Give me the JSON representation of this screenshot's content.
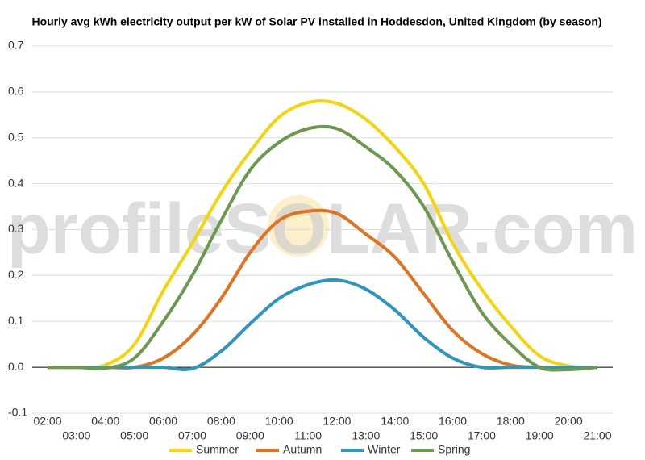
{
  "chart_data": {
    "type": "line",
    "title": "Hourly avg kWh electricity output per kW of Solar PV installed in Hoddesdon, United Kingdom (by season)",
    "watermark": "profileSOLAR.com",
    "categories": [
      "02:00",
      "03:00",
      "04:00",
      "05:00",
      "06:00",
      "07:00",
      "08:00",
      "09:00",
      "10:00",
      "11:00",
      "12:00",
      "13:00",
      "14:00",
      "15:00",
      "16:00",
      "17:00",
      "18:00",
      "19:00",
      "20:00",
      "21:00"
    ],
    "series": [
      {
        "name": "Summer",
        "color": "#f5d50a",
        "values": [
          0,
          0,
          0.005,
          0.05,
          0.167,
          0.27,
          0.38,
          0.47,
          0.545,
          0.577,
          0.575,
          0.54,
          0.48,
          0.4,
          0.27,
          0.17,
          0.09,
          0.025,
          0.003,
          0
        ]
      },
      {
        "name": "Autumn",
        "color": "#e3711e",
        "values": [
          0,
          0,
          0,
          0,
          0.02,
          0.07,
          0.15,
          0.25,
          0.32,
          0.34,
          0.335,
          0.29,
          0.24,
          0.16,
          0.08,
          0.03,
          0.005,
          0,
          0,
          0
        ]
      },
      {
        "name": "Winter",
        "color": "#2b96c0",
        "values": [
          0,
          0,
          0,
          0,
          0,
          -0.003,
          0.035,
          0.095,
          0.15,
          0.18,
          0.19,
          0.17,
          0.125,
          0.065,
          0.02,
          0,
          0,
          0,
          0,
          0
        ]
      },
      {
        "name": "Spring",
        "color": "#6b9a4e",
        "values": [
          0,
          0,
          -0.002,
          0.02,
          0.1,
          0.2,
          0.32,
          0.43,
          0.49,
          0.52,
          0.52,
          0.48,
          0.43,
          0.35,
          0.23,
          0.12,
          0.05,
          0,
          -0.005,
          0
        ]
      }
    ],
    "ylim": [
      -0.1,
      0.7
    ],
    "yticks": [
      -0.1,
      {
        "value": 0,
        "label": "0.0"
      },
      0.1,
      0.2,
      0.3,
      0.4,
      0.5,
      0.6,
      0.7
    ],
    "grid": true,
    "legend": "bottom"
  }
}
